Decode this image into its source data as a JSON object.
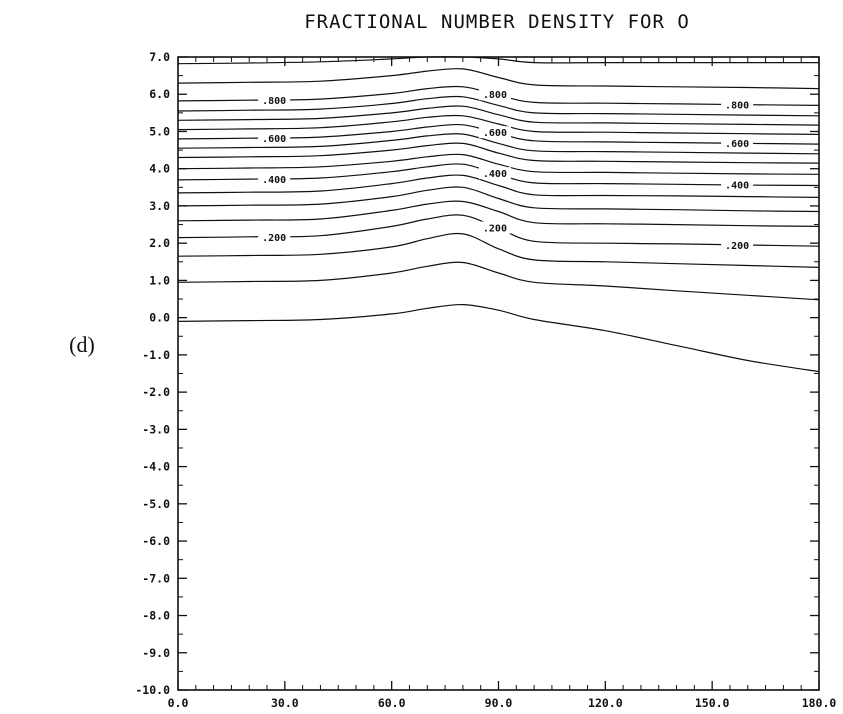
{
  "chart_data": {
    "type": "contour",
    "title": "FRACTIONAL NUMBER DENSITY FOR O",
    "panel_label": "(d)",
    "xlabel": "",
    "ylabel": "",
    "xlim": [
      0,
      180
    ],
    "ylim": [
      -10,
      7
    ],
    "x_ticks": [
      "0.0",
      "30.0",
      "60.0",
      "90.0",
      "120.0",
      "150.0",
      "180.0"
    ],
    "y_ticks": [
      "7.0",
      "6.0",
      "5.0",
      "4.0",
      "3.0",
      "2.0",
      "1.0",
      "0.0",
      "-1.0",
      "-2.0",
      "-3.0",
      "-4.0",
      "-5.0",
      "-6.0",
      "-7.0",
      "-8.0",
      "-9.0",
      "-10.0"
    ],
    "grid": false,
    "contours": [
      {
        "level": 0.0,
        "x": [
          0,
          20,
          40,
          60,
          70,
          80,
          90,
          100,
          120,
          140,
          160,
          180
        ],
        "y": [
          -0.1,
          -0.08,
          -0.05,
          0.1,
          0.25,
          0.35,
          0.2,
          -0.05,
          -0.35,
          -0.75,
          -1.15,
          -1.45
        ]
      },
      {
        "level": 0.1,
        "x": [
          0,
          20,
          40,
          60,
          70,
          80,
          90,
          100,
          120,
          140,
          160,
          180
        ],
        "y": [
          0.95,
          0.97,
          1.0,
          1.2,
          1.38,
          1.48,
          1.2,
          0.95,
          0.85,
          0.72,
          0.6,
          0.48
        ]
      },
      {
        "level": 0.15,
        "x": [
          0,
          20,
          40,
          60,
          70,
          80,
          90,
          100,
          120,
          140,
          160,
          180
        ],
        "y": [
          1.65,
          1.67,
          1.7,
          1.9,
          2.12,
          2.25,
          1.85,
          1.55,
          1.5,
          1.45,
          1.4,
          1.35
        ]
      },
      {
        "level": 0.2,
        "x": [
          0,
          20,
          40,
          60,
          70,
          80,
          90,
          100,
          120,
          140,
          160,
          180
        ],
        "y": [
          2.15,
          2.17,
          2.2,
          2.45,
          2.65,
          2.75,
          2.4,
          2.05,
          2.0,
          1.98,
          1.95,
          1.92
        ]
      },
      {
        "level": 0.25,
        "x": [
          0,
          20,
          40,
          60,
          70,
          80,
          90,
          100,
          120,
          140,
          160,
          180
        ],
        "y": [
          2.6,
          2.62,
          2.65,
          2.88,
          3.05,
          3.12,
          2.85,
          2.55,
          2.52,
          2.5,
          2.47,
          2.45
        ]
      },
      {
        "level": 0.3,
        "x": [
          0,
          20,
          40,
          60,
          70,
          80,
          90,
          100,
          120,
          140,
          160,
          180
        ],
        "y": [
          3.0,
          3.02,
          3.05,
          3.25,
          3.42,
          3.5,
          3.2,
          2.95,
          2.92,
          2.9,
          2.87,
          2.85
        ]
      },
      {
        "level": 0.35,
        "x": [
          0,
          20,
          40,
          60,
          70,
          80,
          90,
          100,
          120,
          140,
          160,
          180
        ],
        "y": [
          3.35,
          3.37,
          3.4,
          3.6,
          3.75,
          3.82,
          3.55,
          3.3,
          3.28,
          3.27,
          3.25,
          3.23
        ]
      },
      {
        "level": 0.4,
        "x": [
          0,
          20,
          40,
          60,
          70,
          80,
          90,
          100,
          120,
          140,
          160,
          180
        ],
        "y": [
          3.7,
          3.72,
          3.75,
          3.92,
          4.05,
          4.12,
          3.85,
          3.62,
          3.6,
          3.58,
          3.56,
          3.55
        ]
      },
      {
        "level": 0.45,
        "x": [
          0,
          20,
          40,
          60,
          70,
          80,
          90,
          100,
          120,
          140,
          160,
          180
        ],
        "y": [
          4.0,
          4.02,
          4.05,
          4.2,
          4.32,
          4.38,
          4.12,
          3.92,
          3.9,
          3.88,
          3.86,
          3.85
        ]
      },
      {
        "level": 0.5,
        "x": [
          0,
          20,
          40,
          60,
          70,
          80,
          90,
          100,
          120,
          140,
          160,
          180
        ],
        "y": [
          4.3,
          4.32,
          4.35,
          4.5,
          4.62,
          4.68,
          4.42,
          4.22,
          4.2,
          4.18,
          4.16,
          4.15
        ]
      },
      {
        "level": 0.55,
        "x": [
          0,
          20,
          40,
          60,
          70,
          80,
          90,
          100,
          120,
          140,
          160,
          180
        ],
        "y": [
          4.55,
          4.57,
          4.6,
          4.76,
          4.88,
          4.93,
          4.68,
          4.48,
          4.46,
          4.44,
          4.42,
          4.4
        ]
      },
      {
        "level": 0.6,
        "x": [
          0,
          20,
          40,
          60,
          70,
          80,
          90,
          100,
          120,
          140,
          160,
          180
        ],
        "y": [
          4.8,
          4.82,
          4.85,
          5.0,
          5.12,
          5.18,
          4.95,
          4.75,
          4.72,
          4.7,
          4.68,
          4.66
        ]
      },
      {
        "level": 0.65,
        "x": [
          0,
          20,
          40,
          60,
          70,
          80,
          90,
          100,
          120,
          140,
          160,
          180
        ],
        "y": [
          5.05,
          5.07,
          5.1,
          5.26,
          5.38,
          5.42,
          5.2,
          5.0,
          4.98,
          4.96,
          4.94,
          4.92
        ]
      },
      {
        "level": 0.7,
        "x": [
          0,
          20,
          40,
          60,
          70,
          80,
          90,
          100,
          120,
          140,
          160,
          180
        ],
        "y": [
          5.3,
          5.32,
          5.35,
          5.5,
          5.62,
          5.68,
          5.45,
          5.25,
          5.23,
          5.21,
          5.19,
          5.17
        ]
      },
      {
        "level": 0.75,
        "x": [
          0,
          20,
          40,
          60,
          70,
          80,
          90,
          100,
          120,
          140,
          160,
          180
        ],
        "y": [
          5.55,
          5.57,
          5.6,
          5.75,
          5.88,
          5.93,
          5.7,
          5.5,
          5.48,
          5.46,
          5.44,
          5.42
        ]
      },
      {
        "level": 0.8,
        "x": [
          0,
          20,
          40,
          60,
          70,
          80,
          90,
          100,
          120,
          140,
          160,
          180
        ],
        "y": [
          5.82,
          5.84,
          5.87,
          6.02,
          6.15,
          6.2,
          5.98,
          5.78,
          5.76,
          5.74,
          5.72,
          5.7
        ]
      },
      {
        "level": 0.85,
        "x": [
          0,
          20,
          40,
          60,
          70,
          80,
          90,
          100,
          120,
          140,
          160,
          180
        ],
        "y": [
          6.3,
          6.32,
          6.35,
          6.5,
          6.62,
          6.68,
          6.45,
          6.25,
          6.22,
          6.2,
          6.18,
          6.15
        ]
      },
      {
        "level": 0.9,
        "x": [
          0,
          20,
          40,
          60,
          70,
          80,
          90,
          100,
          120,
          140,
          160,
          180
        ],
        "y": [
          6.82,
          6.84,
          6.87,
          6.95,
          7.0,
          7.0,
          6.95,
          6.85,
          6.85,
          6.85,
          6.85,
          6.85
        ]
      }
    ],
    "contour_labels": [
      {
        "text": ".800",
        "x": 27,
        "y": 5.85
      },
      {
        "text": ".600",
        "x": 27,
        "y": 4.82
      },
      {
        "text": ".400",
        "x": 27,
        "y": 3.72
      },
      {
        "text": ".200",
        "x": 27,
        "y": 2.17
      },
      {
        "text": ".800",
        "x": 89,
        "y": 6.0
      },
      {
        "text": ".600",
        "x": 89,
        "y": 4.98
      },
      {
        "text": ".400",
        "x": 89,
        "y": 3.88
      },
      {
        "text": ".200",
        "x": 89,
        "y": 2.42
      },
      {
        "text": ".800",
        "x": 157,
        "y": 5.73
      },
      {
        "text": ".600",
        "x": 157,
        "y": 4.69
      },
      {
        "text": ".400",
        "x": 157,
        "y": 3.57
      },
      {
        "text": ".200",
        "x": 157,
        "y": 1.95
      }
    ]
  }
}
